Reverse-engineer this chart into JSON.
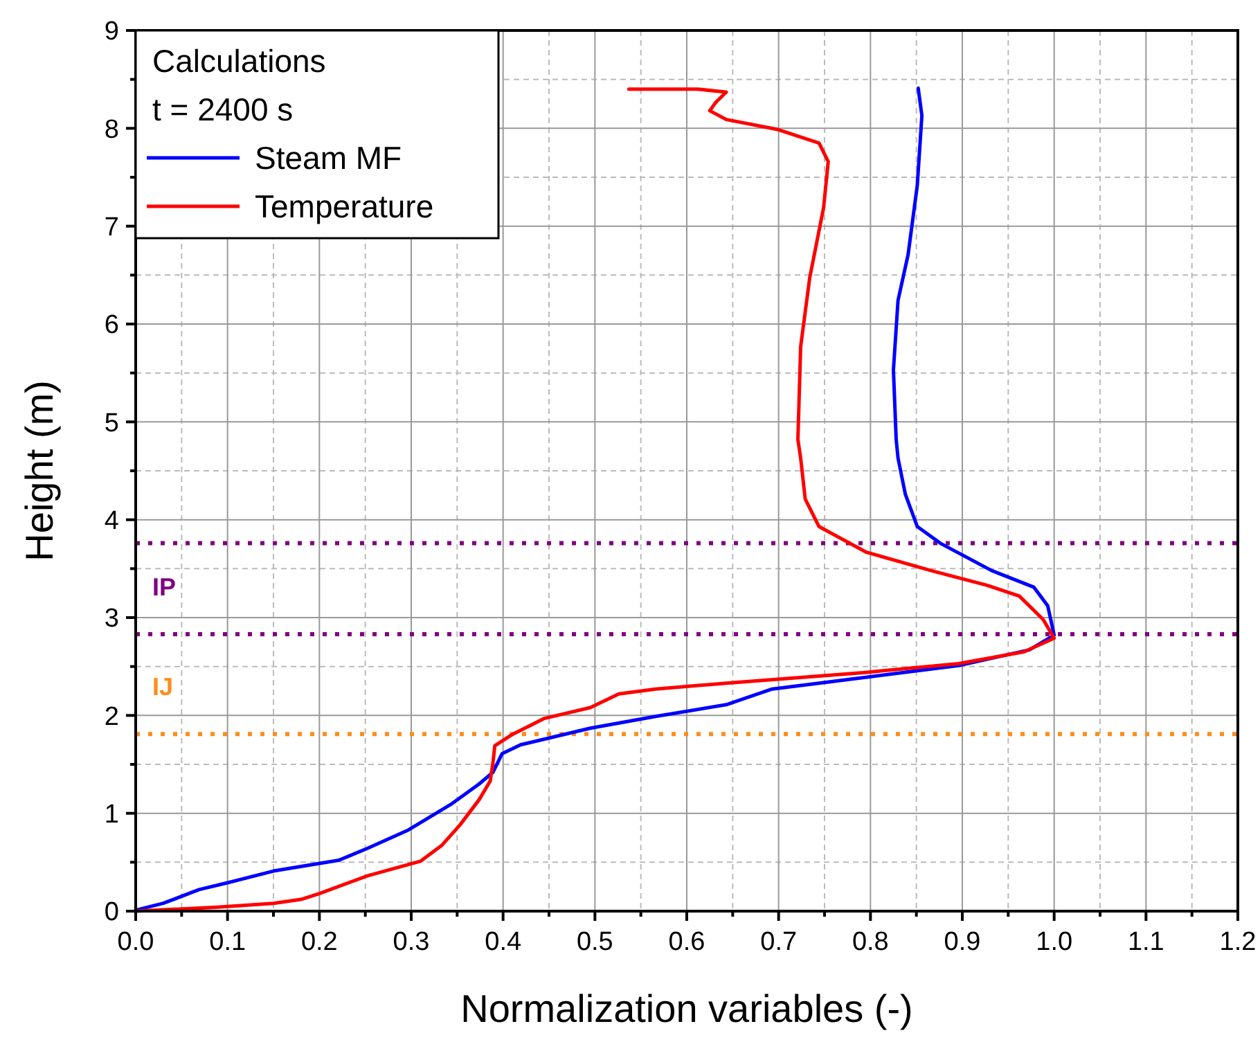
{
  "chart_data": {
    "type": "line",
    "xlabel": "Normalization variables (-)",
    "ylabel": "Height (m)",
    "legend_title": "Calculations\nt = 2400 s",
    "legend": "top left",
    "grid": true,
    "xlim": [
      0,
      1.2
    ],
    "xticks": [
      {
        "value": 0,
        "label": "0.0"
      },
      {
        "value": 0.1,
        "label": "0.1"
      },
      {
        "value": 0.2,
        "label": "0.2"
      },
      {
        "value": 0.3,
        "label": "0.3"
      },
      {
        "value": 0.4,
        "label": "0.4"
      },
      {
        "value": 0.5,
        "label": "0.5"
      },
      {
        "value": 0.6,
        "label": "0.6"
      },
      {
        "value": 0.7,
        "label": "0.7"
      },
      {
        "value": 0.8,
        "label": "0.8"
      },
      {
        "value": 0.9,
        "label": "0.9"
      },
      {
        "value": 1,
        "label": "1.0"
      },
      {
        "value": 1.1,
        "label": "1.1"
      },
      {
        "value": 1.2,
        "label": "1.2"
      }
    ],
    "ylim": [
      0,
      9
    ],
    "yticks": [
      0,
      1,
      2,
      3,
      4,
      5,
      6,
      7,
      8,
      9
    ],
    "series": [
      {
        "name": "Steam MF",
        "color": "#0000ff",
        "x": [
          0,
          0.03,
          0.069,
          0.1,
          0.15,
          0.221,
          0.252,
          0.297,
          0.343,
          0.374,
          0.389,
          0.399,
          0.419,
          0.495,
          0.566,
          0.643,
          0.693,
          0.795,
          0.896,
          0.973,
          1.0,
          0.993,
          0.978,
          0.932,
          0.876,
          0.851,
          0.838,
          0.83,
          0.828,
          0.825,
          0.83,
          0.841,
          0.851,
          0.856,
          0.852
        ],
        "values": [
          0.01,
          0.08,
          0.22,
          0.29,
          0.41,
          0.52,
          0.64,
          0.83,
          1.09,
          1.3,
          1.42,
          1.61,
          1.7,
          1.87,
          1.99,
          2.11,
          2.27,
          2.39,
          2.51,
          2.67,
          2.82,
          3.12,
          3.31,
          3.48,
          3.76,
          3.93,
          4.26,
          4.63,
          4.82,
          5.53,
          6.24,
          6.71,
          7.42,
          8.13,
          8.41
        ]
      },
      {
        "name": "Temperature",
        "color": "#ff0000",
        "x": [
          0,
          0.089,
          0.15,
          0.18,
          0.2,
          0.252,
          0.31,
          0.333,
          0.353,
          0.374,
          0.386,
          0.389,
          0.391,
          0.409,
          0.445,
          0.495,
          0.526,
          0.566,
          0.643,
          0.795,
          0.896,
          0.967,
          1.0,
          0.988,
          0.962,
          0.927,
          0.866,
          0.795,
          0.744,
          0.729,
          0.724,
          0.721,
          0.724,
          0.734,
          0.749,
          0.754,
          0.744,
          0.698,
          0.643,
          0.625,
          0.632,
          0.643,
          0.612,
          0.582,
          0.537
        ],
        "values": [
          0,
          0.04,
          0.08,
          0.12,
          0.18,
          0.36,
          0.51,
          0.67,
          0.88,
          1.14,
          1.33,
          1.52,
          1.69,
          1.8,
          1.97,
          2.08,
          2.22,
          2.27,
          2.33,
          2.44,
          2.53,
          2.65,
          2.79,
          2.98,
          3.22,
          3.33,
          3.48,
          3.67,
          3.93,
          4.21,
          4.63,
          4.82,
          5.77,
          6.48,
          7.19,
          7.66,
          7.85,
          7.99,
          8.09,
          8.18,
          8.27,
          8.37,
          8.4,
          8.4,
          8.4
        ]
      }
    ],
    "ref_lines": [
      {
        "axis": "y",
        "value": 3.76,
        "color": "#800080",
        "line_style": "dotted"
      },
      {
        "axis": "y",
        "value": 2.83,
        "color": "#800080",
        "line_style": "dotted",
        "label": "IP"
      },
      {
        "axis": "y",
        "value": 1.81,
        "color": "#ff8c1a",
        "line_style": "dotted",
        "label": "IJ"
      }
    ]
  }
}
